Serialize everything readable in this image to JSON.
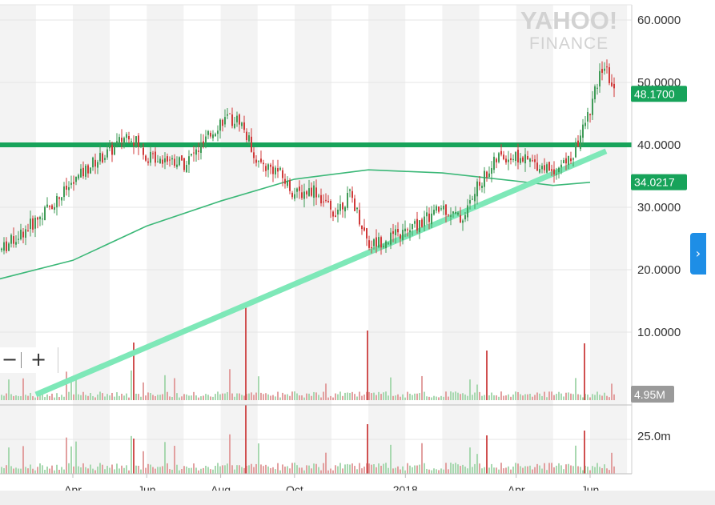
{
  "watermark": {
    "line1": "YAHOO!",
    "line2": "FINANCE"
  },
  "zoom": {
    "minus": "−",
    "plus": "+"
  },
  "nav_tab": {
    "icon": "chevron-right-icon",
    "glyph": "›",
    "color": "#1e8ee6"
  },
  "chart_data": {
    "type": "candlestick",
    "y_ticks": [
      "60.0000",
      "50.0000",
      "40.0000",
      "30.0000",
      "20.0000",
      "10.0000"
    ],
    "x_ticks": [
      "Apr",
      "Jun",
      "Aug",
      "Oct",
      "2018",
      "Apr",
      "Jun"
    ],
    "ylim": [
      0,
      62
    ],
    "price_badges": [
      {
        "label": "48.1700",
        "value": 48.17,
        "color": "#17a35a"
      },
      {
        "label": "34.0217",
        "value": 34.0217,
        "color": "#17a35a"
      }
    ],
    "volume_badge": {
      "label": "4.95M",
      "color": "#9a9a9a"
    },
    "volume_tick": "25.0m",
    "horizontal_line": {
      "value": 40.0,
      "color": "#17a35a"
    },
    "trendline": {
      "from": {
        "x": "Mar 2017",
        "y": 0
      },
      "to": {
        "x": "Jun 2018",
        "y": 39
      },
      "color": "#7ee8b8"
    },
    "moving_average": {
      "color": "#3cb878",
      "points": [
        {
          "x": "Feb 2017",
          "y": 18.5
        },
        {
          "x": "Apr 2017",
          "y": 21.5
        },
        {
          "x": "Jun 2017",
          "y": 27
        },
        {
          "x": "Aug 2017",
          "y": 31
        },
        {
          "x": "Oct 2017",
          "y": 34.5
        },
        {
          "x": "Dec 2017",
          "y": 36
        },
        {
          "x": "Feb 2018",
          "y": 35.5
        },
        {
          "x": "Apr 2018",
          "y": 34.2
        },
        {
          "x": "May 2018",
          "y": 33.5
        },
        {
          "x": "Jun 2018",
          "y": 34
        }
      ]
    },
    "price_series": [
      {
        "x": "Feb 2017",
        "y": 23
      },
      {
        "x": "Mar 2017",
        "y": 28
      },
      {
        "x": "Mar 2017",
        "y": 31
      },
      {
        "x": "Apr 2017",
        "y": 34
      },
      {
        "x": "Apr 2017",
        "y": 37
      },
      {
        "x": "May 2017",
        "y": 39
      },
      {
        "x": "May 2017",
        "y": 42
      },
      {
        "x": "Jun 2017",
        "y": 38
      },
      {
        "x": "Jun 2017",
        "y": 38
      },
      {
        "x": "Jul 2017",
        "y": 37
      },
      {
        "x": "Jul 2017",
        "y": 40
      },
      {
        "x": "Aug 2017",
        "y": 44
      },
      {
        "x": "Aug 2017",
        "y": 44
      },
      {
        "x": "Sep 2017",
        "y": 37
      },
      {
        "x": "Sep 2017",
        "y": 36
      },
      {
        "x": "Oct 2017",
        "y": 32
      },
      {
        "x": "Oct 2017",
        "y": 33
      },
      {
        "x": "Nov 2017",
        "y": 29
      },
      {
        "x": "Nov 2017",
        "y": 32
      },
      {
        "x": "Dec 2017",
        "y": 24
      },
      {
        "x": "Dec 2017",
        "y": 25
      },
      {
        "x": "Jan 2018",
        "y": 26
      },
      {
        "x": "Jan 2018",
        "y": 28
      },
      {
        "x": "Feb 2018",
        "y": 30
      },
      {
        "x": "Feb 2018",
        "y": 28
      },
      {
        "x": "Mar 2018",
        "y": 34
      },
      {
        "x": "Mar 2018",
        "y": 38
      },
      {
        "x": "Apr 2018",
        "y": 38
      },
      {
        "x": "Apr 2018",
        "y": 37
      },
      {
        "x": "May 2018",
        "y": 36
      },
      {
        "x": "May 2018",
        "y": 38
      },
      {
        "x": "Jun 2018",
        "y": 46
      },
      {
        "x": "Jun 2018",
        "y": 53
      },
      {
        "x": "Jun 2018",
        "y": 48.17
      }
    ]
  }
}
